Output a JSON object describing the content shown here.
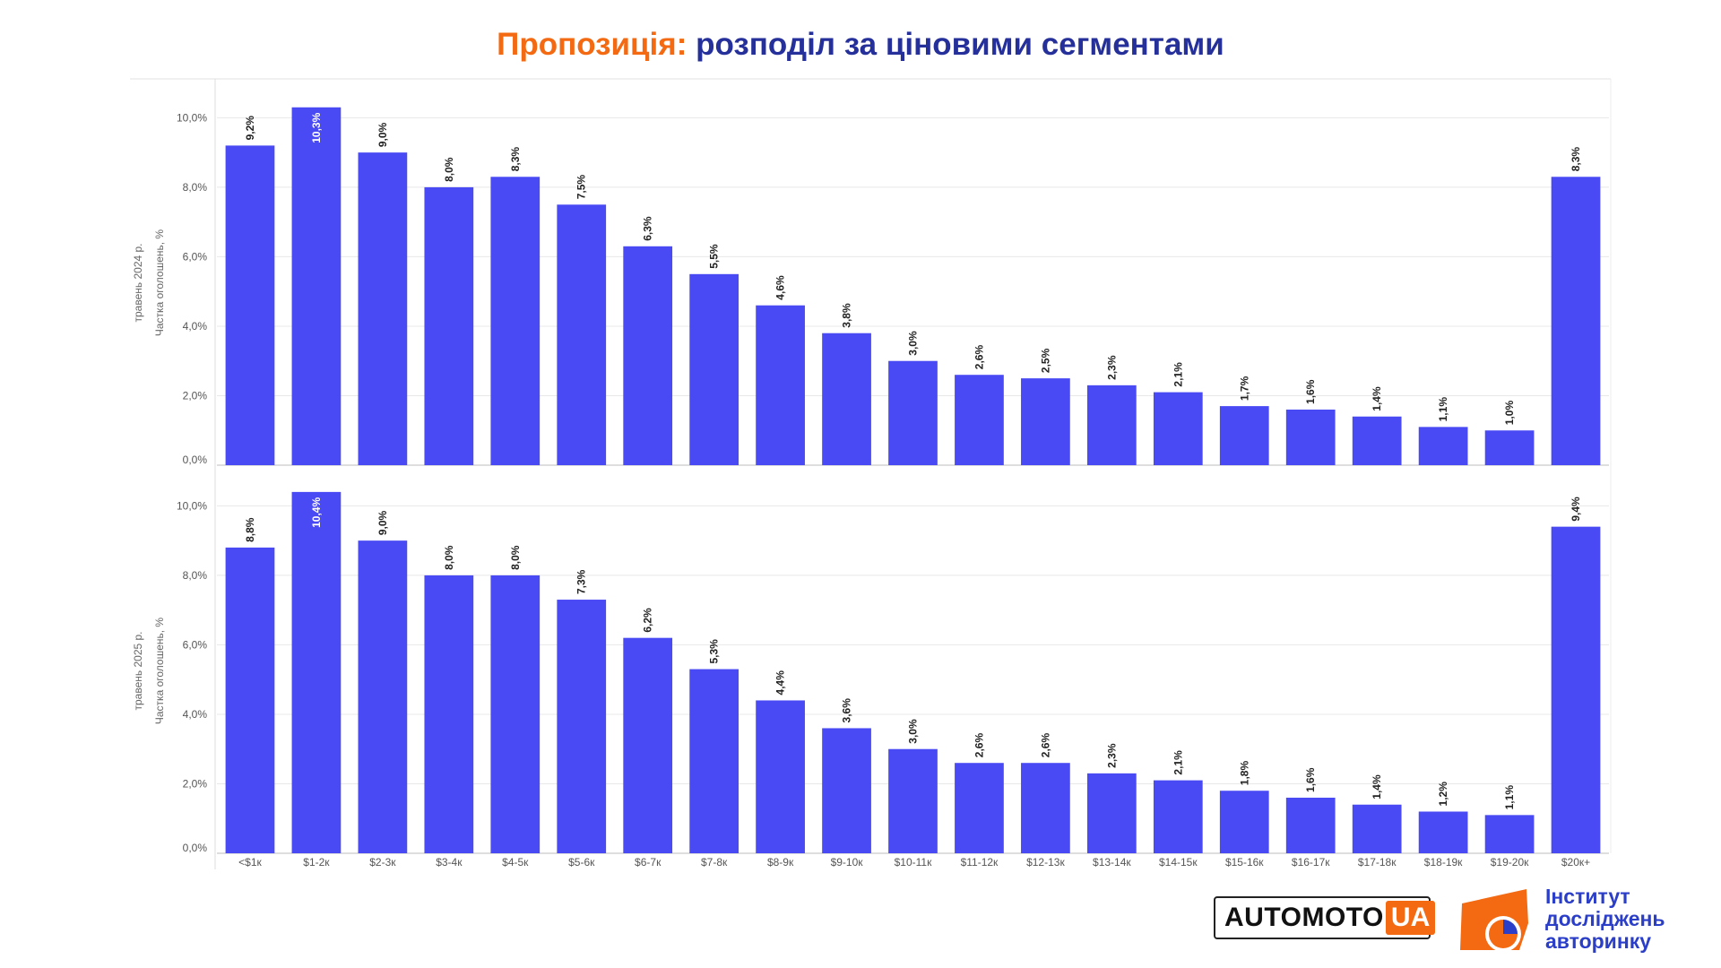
{
  "header": {
    "title_prefix": "Пропозиція:",
    "title_main": " розподіл за ціновими сегментами",
    "title_prefix_color": "#f36a12",
    "title_main_color": "#25309a"
  },
  "footer": {
    "automoto_text": "AUTOMOTO",
    "automoto_ua": "UA",
    "institute_lines": [
      "Інститут",
      "досліджень",
      "авторинку"
    ]
  },
  "colors": {
    "bar": "#4a4af5",
    "grid": "#e8e8e8",
    "text": "#333333"
  },
  "chart_data": [
    {
      "type": "bar",
      "ylabel_line1": "травень 2024 р.",
      "ylabel_line2": "Частка оголошень, %",
      "yticks": [
        "0,0%",
        "2,0%",
        "4,0%",
        "6,0%",
        "8,0%",
        "10,0%"
      ],
      "ylim": [
        0,
        10.5
      ],
      "categories": [
        "<$1к",
        "$1-2к",
        "$2-3к",
        "$3-4к",
        "$4-5к",
        "$5-6к",
        "$6-7к",
        "$7-8к",
        "$8-9к",
        "$9-10к",
        "$10-11к",
        "$11-12к",
        "$12-13к",
        "$13-14к",
        "$14-15к",
        "$15-16к",
        "$16-17к",
        "$17-18к",
        "$18-19к",
        "$19-20к",
        "$20к+"
      ],
      "values": [
        9.2,
        10.3,
        9.0,
        8.0,
        8.3,
        7.5,
        6.3,
        5.5,
        4.6,
        3.8,
        3.0,
        2.6,
        2.5,
        2.3,
        2.1,
        1.7,
        1.6,
        1.4,
        1.1,
        1.0,
        8.3
      ],
      "labels": [
        "9,2%",
        "10,3%",
        "9,0%",
        "8,0%",
        "8,3%",
        "7,5%",
        "6,3%",
        "5,5%",
        "4,6%",
        "3,8%",
        "3,0%",
        "2,6%",
        "2,5%",
        "2,3%",
        "2,1%",
        "1,7%",
        "1,6%",
        "1,4%",
        "1,1%",
        "1,0%",
        "8,3%"
      ],
      "grid": true
    },
    {
      "type": "bar",
      "ylabel_line1": "травень 2025 р.",
      "ylabel_line2": "Частка оголошень, %",
      "yticks": [
        "0,0%",
        "2,0%",
        "4,0%",
        "6,0%",
        "8,0%",
        "10,0%"
      ],
      "ylim": [
        0,
        10.5
      ],
      "categories": [
        "<$1к",
        "$1-2к",
        "$2-3к",
        "$3-4к",
        "$4-5к",
        "$5-6к",
        "$6-7к",
        "$7-8к",
        "$8-9к",
        "$9-10к",
        "$10-11к",
        "$11-12к",
        "$12-13к",
        "$13-14к",
        "$14-15к",
        "$15-16к",
        "$16-17к",
        "$17-18к",
        "$18-19к",
        "$19-20к",
        "$20к+"
      ],
      "values": [
        8.8,
        10.4,
        9.0,
        8.0,
        8.0,
        7.3,
        6.2,
        5.3,
        4.4,
        3.6,
        3.0,
        2.6,
        2.6,
        2.3,
        2.1,
        1.8,
        1.6,
        1.4,
        1.2,
        1.1,
        9.4
      ],
      "labels": [
        "8,8%",
        "10,4%",
        "9,0%",
        "8,0%",
        "8,0%",
        "7,3%",
        "6,2%",
        "5,3%",
        "4,4%",
        "3,6%",
        "3,0%",
        "2,6%",
        "2,6%",
        "2,3%",
        "2,1%",
        "1,8%",
        "1,6%",
        "1,4%",
        "1,2%",
        "1,1%",
        "9,4%"
      ],
      "grid": true
    }
  ]
}
